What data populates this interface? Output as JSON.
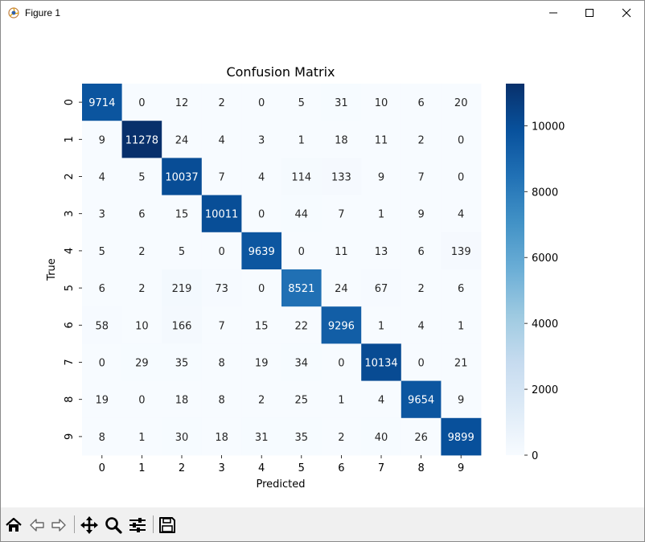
{
  "window": {
    "title": "Figure 1"
  },
  "toolbar": {
    "items": [
      {
        "icon": "home-icon"
      },
      {
        "icon": "back-arrow-icon"
      },
      {
        "icon": "forward-arrow-icon"
      },
      {
        "icon": "pan-move-icon"
      },
      {
        "icon": "zoom-magnifier-icon"
      },
      {
        "icon": "configure-subplots-icon"
      },
      {
        "icon": "save-floppy-icon"
      }
    ]
  },
  "chart_data": {
    "type": "heatmap",
    "title": "Confusion Matrix",
    "xlabel": "Predicted",
    "ylabel": "True",
    "x_ticks": [
      "0",
      "1",
      "2",
      "3",
      "4",
      "5",
      "6",
      "7",
      "8",
      "9"
    ],
    "y_ticks": [
      "0",
      "1",
      "2",
      "3",
      "4",
      "5",
      "6",
      "7",
      "8",
      "9"
    ],
    "matrix": [
      [
        9714,
        0,
        12,
        2,
        0,
        5,
        31,
        10,
        6,
        20
      ],
      [
        9,
        11278,
        24,
        4,
        3,
        1,
        18,
        11,
        2,
        0
      ],
      [
        4,
        5,
        10037,
        7,
        4,
        114,
        133,
        9,
        7,
        0
      ],
      [
        3,
        6,
        15,
        10011,
        0,
        44,
        7,
        1,
        9,
        4
      ],
      [
        5,
        2,
        5,
        0,
        9639,
        0,
        11,
        13,
        6,
        139
      ],
      [
        6,
        2,
        219,
        73,
        0,
        8521,
        24,
        67,
        2,
        6
      ],
      [
        58,
        10,
        166,
        7,
        15,
        22,
        9296,
        1,
        4,
        1
      ],
      [
        0,
        29,
        35,
        8,
        19,
        34,
        0,
        10134,
        0,
        21
      ],
      [
        19,
        0,
        18,
        8,
        2,
        25,
        1,
        4,
        9654,
        9
      ],
      [
        8,
        1,
        30,
        18,
        31,
        35,
        2,
        40,
        26,
        9899
      ]
    ],
    "colormap": "Blues",
    "vmin": 0,
    "vmax": 11278,
    "colorbar_ticks": [
      0,
      2000,
      4000,
      6000,
      8000,
      10000
    ],
    "annotations": true,
    "grid": false,
    "legend": "colorbar-right"
  }
}
